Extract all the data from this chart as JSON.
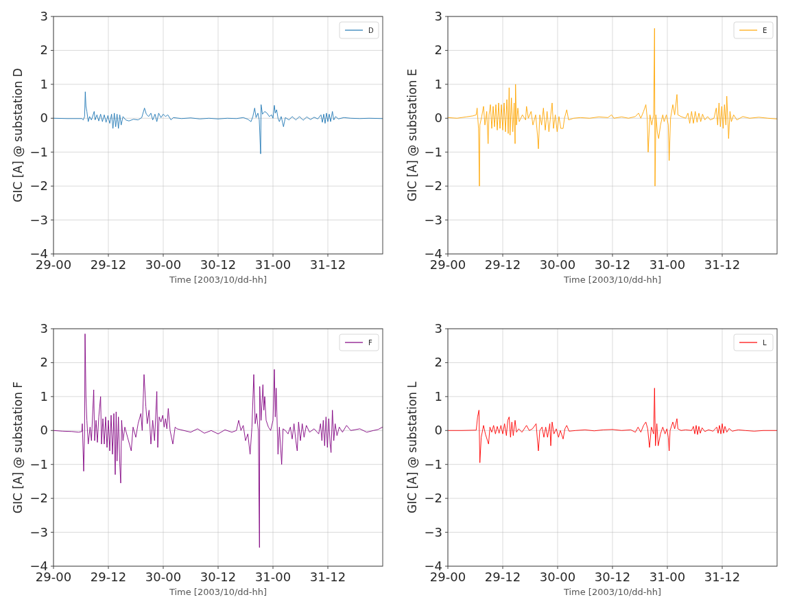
{
  "chart_data": [
    {
      "type": "line",
      "xlabel": "Time [2003/10/dd-hh]",
      "ylabel": "GIC [A] @ substation D",
      "grid": true,
      "legend": "top right",
      "xlim": [
        "2003-10-29T00:00",
        "2003-11-01T00:00"
      ],
      "xticks": [
        {
          "value": "2003-10-29T00:00",
          "label": "29-00"
        },
        {
          "value": "2003-10-29T12:00",
          "label": "29-12"
        },
        {
          "value": "2003-10-30T00:00",
          "label": "30-00"
        },
        {
          "value": "2003-10-30T12:00",
          "label": "30-12"
        },
        {
          "value": "2003-10-31T00:00",
          "label": "31-00"
        },
        {
          "value": "2003-10-31T12:00",
          "label": "31-12"
        }
      ],
      "ylim": [
        -4,
        3
      ],
      "yticks": [
        {
          "value": -4,
          "label": "−4"
        },
        {
          "value": -3,
          "label": "−3"
        },
        {
          "value": -2,
          "label": "−2"
        },
        {
          "value": -1,
          "label": "−1"
        },
        0,
        1,
        2,
        3
      ],
      "x": [
        "2003-10-29T00:00",
        "2003-10-29T03:00",
        "2003-10-29T06:12",
        "2003-10-29T06:30",
        "2003-10-29T06:48",
        "2003-10-29T06:57",
        "2003-10-29T07:06",
        "2003-10-29T07:18",
        "2003-10-29T07:36",
        "2003-10-29T07:54",
        "2003-10-29T08:18",
        "2003-10-29T08:54",
        "2003-10-29T09:06",
        "2003-10-29T09:30",
        "2003-10-29T09:54",
        "2003-10-29T10:18",
        "2003-10-29T10:42",
        "2003-10-29T11:06",
        "2003-10-29T11:30",
        "2003-10-29T11:54",
        "2003-10-29T12:18",
        "2003-10-29T12:42",
        "2003-10-29T13:00",
        "2003-10-29T13:18",
        "2003-10-29T13:36",
        "2003-10-29T13:54",
        "2003-10-29T14:12",
        "2003-10-29T14:30",
        "2003-10-29T14:48",
        "2003-10-29T15:12",
        "2003-10-29T15:48",
        "2003-10-29T16:30",
        "2003-10-29T17:30",
        "2003-10-29T18:30",
        "2003-10-29T19:18",
        "2003-10-29T19:54",
        "2003-10-29T20:18",
        "2003-10-29T20:48",
        "2003-10-29T21:18",
        "2003-10-29T21:42",
        "2003-10-29T22:12",
        "2003-10-29T22:36",
        "2003-10-29T23:00",
        "2003-10-29T23:30",
        "2003-10-30T00:00",
        "2003-10-30T00:30",
        "2003-10-30T01:00",
        "2003-10-30T01:42",
        "2003-10-30T02:12",
        "2003-10-30T04:00",
        "2003-10-30T06:00",
        "2003-10-30T08:00",
        "2003-10-30T10:00",
        "2003-10-30T12:00",
        "2003-10-30T14:00",
        "2003-10-30T16:00",
        "2003-10-30T17:30",
        "2003-10-30T18:30",
        "2003-10-30T19:12",
        "2003-10-30T19:36",
        "2003-10-30T20:00",
        "2003-10-30T20:18",
        "2003-10-30T20:42",
        "2003-10-30T21:00",
        "2003-10-30T21:18",
        "2003-10-30T21:24",
        "2003-10-30T21:42",
        "2003-10-30T22:12",
        "2003-10-30T22:42",
        "2003-10-30T23:12",
        "2003-10-30T23:42",
        "2003-10-31T00:00",
        "2003-10-31T00:18",
        "2003-10-31T00:30",
        "2003-10-31T00:48",
        "2003-10-31T01:06",
        "2003-10-31T01:24",
        "2003-10-31T01:48",
        "2003-10-31T02:18",
        "2003-10-31T02:42",
        "2003-10-31T03:30",
        "2003-10-31T04:12",
        "2003-10-31T05:00",
        "2003-10-31T05:48",
        "2003-10-31T06:36",
        "2003-10-31T07:24",
        "2003-10-31T08:12",
        "2003-10-31T09:00",
        "2003-10-31T09:48",
        "2003-10-31T10:30",
        "2003-10-31T10:48",
        "2003-10-31T11:06",
        "2003-10-31T11:24",
        "2003-10-31T11:42",
        "2003-10-31T12:00",
        "2003-10-31T12:18",
        "2003-10-31T12:36",
        "2003-10-31T13:00",
        "2003-10-31T13:18",
        "2003-10-31T13:42",
        "2003-10-31T14:18",
        "2003-10-31T15:30",
        "2003-10-31T17:00",
        "2003-10-31T19:00",
        "2003-10-31T21:00",
        "2003-10-31T23:57"
      ],
      "series": [
        {
          "name": "D",
          "color": "#1f77b4",
          "values": [
            0,
            -0.01,
            -0.01,
            -0.05,
            0.05,
            0.78,
            0.35,
            0.2,
            -0.1,
            0.05,
            -0.05,
            0.2,
            -0.05,
            0.1,
            -0.08,
            0.12,
            -0.1,
            0.1,
            -0.12,
            0.08,
            -0.15,
            0.12,
            -0.3,
            0.15,
            -0.25,
            0.12,
            -0.3,
            0.1,
            -0.2,
            0.05,
            -0.05,
            -0.08,
            -0.03,
            -0.05,
            0.02,
            0.3,
            0.12,
            0.05,
            0.15,
            -0.05,
            0.12,
            -0.1,
            0.15,
            0.02,
            0.12,
            0.05,
            0.1,
            -0.05,
            0.02,
            -0.01,
            0.01,
            -0.02,
            0,
            -0.02,
            0,
            -0.01,
            0.02,
            -0.03,
            -0.1,
            0.05,
            0.3,
            0.02,
            0.15,
            -0.05,
            -1.05,
            0.4,
            0.12,
            0.2,
            0.15,
            0.05,
            0.1,
            0,
            0.38,
            0.15,
            0.25,
            0,
            -0.1,
            0.05,
            -0.25,
            0.02,
            -0.05,
            0.05,
            -0.05,
            0.05,
            -0.06,
            0.04,
            -0.04,
            0.03,
            -0.02,
            0.1,
            -0.12,
            0.12,
            -0.15,
            0.15,
            -0.1,
            0.12,
            -0.1,
            0.2,
            -0.05,
            0.05,
            -0.02,
            0.02,
            0,
            -0.01,
            0,
            -0.01
          ]
        }
      ]
    },
    {
      "type": "line",
      "xlabel": "Time [2003/10/dd-hh]",
      "ylabel": "GIC [A] @ substation E",
      "grid": true,
      "legend": "top right",
      "xlim": [
        "2003-10-29T00:00",
        "2003-11-01T00:00"
      ],
      "xticks": [
        {
          "value": "2003-10-29T00:00",
          "label": "29-00"
        },
        {
          "value": "2003-10-29T12:00",
          "label": "29-12"
        },
        {
          "value": "2003-10-30T00:00",
          "label": "30-00"
        },
        {
          "value": "2003-10-30T12:00",
          "label": "30-12"
        },
        {
          "value": "2003-10-31T00:00",
          "label": "31-00"
        },
        {
          "value": "2003-10-31T12:00",
          "label": "31-12"
        }
      ],
      "ylim": [
        -4,
        3
      ],
      "yticks": [
        {
          "value": -4,
          "label": "−4"
        },
        {
          "value": -3,
          "label": "−3"
        },
        {
          "value": -2,
          "label": "−2"
        },
        {
          "value": -1,
          "label": "−1"
        },
        0,
        1,
        2,
        3
      ],
      "x": [
        "2003-10-29T00:00",
        "2003-10-29T02:00",
        "2003-10-29T04:00",
        "2003-10-29T05:30",
        "2003-10-29T06:12",
        "2003-10-29T06:24",
        "2003-10-29T06:42",
        "2003-10-29T06:54",
        "2003-10-29T07:00",
        "2003-10-29T07:24",
        "2003-10-29T07:48",
        "2003-10-29T08:06",
        "2003-10-29T08:30",
        "2003-10-29T08:48",
        "2003-10-29T09:00",
        "2003-10-29T09:18",
        "2003-10-29T09:36",
        "2003-10-29T09:54",
        "2003-10-29T10:12",
        "2003-10-29T10:30",
        "2003-10-29T10:48",
        "2003-10-29T11:06",
        "2003-10-29T11:24",
        "2003-10-29T11:42",
        "2003-10-29T12:00",
        "2003-10-29T12:18",
        "2003-10-29T12:36",
        "2003-10-29T12:54",
        "2003-10-29T13:12",
        "2003-10-29T13:24",
        "2003-10-29T13:36",
        "2003-10-29T13:54",
        "2003-10-29T14:12",
        "2003-10-29T14:30",
        "2003-10-29T14:42",
        "2003-10-29T14:48",
        "2003-10-29T15:00",
        "2003-10-29T15:18",
        "2003-10-29T15:36",
        "2003-10-29T16:18",
        "2003-10-29T17:00",
        "2003-10-29T17:12",
        "2003-10-29T17:36",
        "2003-10-29T18:12",
        "2003-10-29T18:36",
        "2003-10-29T19:12",
        "2003-10-29T19:36",
        "2003-10-29T19:48",
        "2003-10-29T20:06",
        "2003-10-29T20:30",
        "2003-10-29T20:54",
        "2003-10-29T21:18",
        "2003-10-29T21:42",
        "2003-10-29T22:06",
        "2003-10-29T22:30",
        "2003-10-29T22:48",
        "2003-10-29T23:06",
        "2003-10-29T23:30",
        "2003-10-29T23:54",
        "2003-10-30T00:18",
        "2003-10-30T00:42",
        "2003-10-30T01:12",
        "2003-10-30T01:30",
        "2003-10-30T02:00",
        "2003-10-30T02:24",
        "2003-10-30T03:30",
        "2003-10-30T05:00",
        "2003-10-30T07:00",
        "2003-10-30T09:00",
        "2003-10-30T11:00",
        "2003-10-30T11:48",
        "2003-10-30T12:18",
        "2003-10-30T14:00",
        "2003-10-30T15:30",
        "2003-10-30T17:00",
        "2003-10-30T17:42",
        "2003-10-30T18:12",
        "2003-10-30T18:48",
        "2003-10-30T19:18",
        "2003-10-30T19:36",
        "2003-10-30T19:48",
        "2003-10-30T20:12",
        "2003-10-30T20:36",
        "2003-10-30T21:00",
        "2003-10-30T21:12",
        "2003-10-30T21:18",
        "2003-10-30T21:30",
        "2003-10-30T21:48",
        "2003-10-30T22:06",
        "2003-10-30T22:30",
        "2003-10-30T23:00",
        "2003-10-30T23:18",
        "2003-10-30T23:48",
        "2003-10-31T00:12",
        "2003-10-31T00:24",
        "2003-10-31T00:42",
        "2003-10-31T01:12",
        "2003-10-31T01:36",
        "2003-10-31T02:06",
        "2003-10-31T02:18",
        "2003-10-31T03:00",
        "2003-10-31T04:00",
        "2003-10-31T04:30",
        "2003-10-31T04:54",
        "2003-10-31T05:18",
        "2003-10-31T05:42",
        "2003-10-31T06:06",
        "2003-10-31T06:30",
        "2003-10-31T06:54",
        "2003-10-31T07:18",
        "2003-10-31T07:42",
        "2003-10-31T08:12",
        "2003-10-31T08:48",
        "2003-10-31T09:24",
        "2003-10-31T10:12",
        "2003-10-31T10:42",
        "2003-10-31T11:00",
        "2003-10-31T11:18",
        "2003-10-31T11:36",
        "2003-10-31T11:54",
        "2003-10-31T12:12",
        "2003-10-31T12:30",
        "2003-10-31T12:48",
        "2003-10-31T13:00",
        "2003-10-31T13:24",
        "2003-10-31T13:42",
        "2003-10-31T14:00",
        "2003-10-31T14:30",
        "2003-10-31T15:12",
        "2003-10-31T16:30",
        "2003-10-31T18:00",
        "2003-10-31T20:00",
        "2003-10-31T22:00",
        "2003-10-31T23:57"
      ],
      "series": [
        {
          "name": "E",
          "color": "#ffa500",
          "values": [
            0.02,
            0,
            0.04,
            0.07,
            0.1,
            0.3,
            -0.3,
            -2.0,
            -0.2,
            0.05,
            0.35,
            -0.2,
            0.2,
            -0.75,
            0.1,
            0.4,
            -0.3,
            0.35,
            -0.25,
            0.4,
            -0.35,
            0.45,
            -0.3,
            0.4,
            -0.35,
            0.45,
            -0.4,
            0.55,
            -0.45,
            0.9,
            -0.5,
            0.6,
            -0.4,
            0.45,
            -0.75,
            1.0,
            -0.2,
            0.3,
            -0.1,
            0.1,
            -0.05,
            0.35,
            0,
            0.2,
            -0.2,
            0.1,
            -0.5,
            -0.9,
            0.1,
            -0.2,
            0.3,
            -0.35,
            0.2,
            -0.4,
            0.1,
            0.45,
            -0.3,
            0.1,
            -0.4,
            0.05,
            -0.3,
            -0.3,
            0,
            0.25,
            -0.05,
            0,
            0.02,
            0,
            0.04,
            0.02,
            0.1,
            0,
            0.04,
            0,
            0.05,
            0.15,
            0,
            0.2,
            0.4,
            0,
            -1.0,
            0.1,
            -0.2,
            0.1,
            2.65,
            -2.0,
            0.1,
            -0.4,
            -0.6,
            -0.2,
            0.1,
            -0.1,
            0.1,
            -0.2,
            -1.25,
            0,
            0.4,
            0.1,
            0.7,
            0.1,
            0.05,
            0,
            0.15,
            -0.15,
            0.2,
            -0.15,
            0.2,
            -0.12,
            0.15,
            -0.1,
            0.12,
            -0.05,
            0.05,
            -0.05,
            0,
            0.3,
            -0.2,
            0.45,
            -0.25,
            0.35,
            -0.3,
            0.4,
            -0.2,
            0.65,
            -0.6,
            0.2,
            -0.1,
            0.1,
            -0.05,
            0.05,
            0,
            0.03,
            0,
            -0.02
          ]
        }
      ]
    },
    {
      "type": "line",
      "xlabel": "Time [2003/10/dd-hh]",
      "ylabel": "GIC [A] @ substation F",
      "grid": true,
      "legend": "top right",
      "xlim": [
        "2003-10-29T00:00",
        "2003-11-01T00:00"
      ],
      "xticks": [
        {
          "value": "2003-10-29T00:00",
          "label": "29-00"
        },
        {
          "value": "2003-10-29T12:00",
          "label": "29-12"
        },
        {
          "value": "2003-10-30T00:00",
          "label": "30-00"
        },
        {
          "value": "2003-10-30T12:00",
          "label": "30-12"
        },
        {
          "value": "2003-10-31T00:00",
          "label": "31-00"
        },
        {
          "value": "2003-10-31T12:00",
          "label": "31-12"
        }
      ],
      "ylim": [
        -4,
        3
      ],
      "yticks": [
        {
          "value": -4,
          "label": "−4"
        },
        {
          "value": -3,
          "label": "−3"
        },
        {
          "value": -2,
          "label": "−2"
        },
        {
          "value": -1,
          "label": "−1"
        },
        0,
        1,
        2,
        3
      ],
      "x": [
        "2003-10-29T00:00",
        "2003-10-29T02:00",
        "2003-10-29T04:00",
        "2003-10-29T05:30",
        "2003-10-29T06:12",
        "2003-10-29T06:18",
        "2003-10-29T06:36",
        "2003-10-29T06:48",
        "2003-10-29T06:54",
        "2003-10-29T07:06",
        "2003-10-29T07:18",
        "2003-10-29T07:36",
        "2003-10-29T08:00",
        "2003-10-29T08:18",
        "2003-10-29T08:48",
        "2003-10-29T09:00",
        "2003-10-29T09:18",
        "2003-10-29T09:36",
        "2003-10-29T09:54",
        "2003-10-29T10:18",
        "2003-10-29T10:30",
        "2003-10-29T10:48",
        "2003-10-29T11:06",
        "2003-10-29T11:24",
        "2003-10-29T11:42",
        "2003-10-29T12:00",
        "2003-10-29T12:18",
        "2003-10-29T12:36",
        "2003-10-29T12:54",
        "2003-10-29T13:12",
        "2003-10-29T13:30",
        "2003-10-29T13:42",
        "2003-10-29T13:54",
        "2003-10-29T14:12",
        "2003-10-29T14:30",
        "2003-10-29T14:42",
        "2003-10-29T14:54",
        "2003-10-29T15:12",
        "2003-10-29T15:36",
        "2003-10-29T16:12",
        "2003-10-29T17:00",
        "2003-10-29T17:24",
        "2003-10-29T18:00",
        "2003-10-29T18:30",
        "2003-10-29T19:06",
        "2003-10-29T19:24",
        "2003-10-29T19:48",
        "2003-10-29T20:12",
        "2003-10-29T20:30",
        "2003-10-29T20:54",
        "2003-10-29T21:18",
        "2003-10-29T21:42",
        "2003-10-29T22:06",
        "2003-10-29T22:36",
        "2003-10-29T22:48",
        "2003-10-29T23:06",
        "2003-10-29T23:30",
        "2003-10-29T23:54",
        "2003-10-30T00:12",
        "2003-10-30T00:30",
        "2003-10-30T00:48",
        "2003-10-30T01:06",
        "2003-10-30T01:30",
        "2003-10-30T02:06",
        "2003-10-30T02:36",
        "2003-10-30T03:00",
        "2003-10-30T04:30",
        "2003-10-30T06:00",
        "2003-10-30T07:30",
        "2003-10-30T09:00",
        "2003-10-30T10:30",
        "2003-10-30T12:00",
        "2003-10-30T13:30",
        "2003-10-30T15:00",
        "2003-10-30T16:00",
        "2003-10-30T16:30",
        "2003-10-30T17:00",
        "2003-10-30T17:30",
        "2003-10-30T18:00",
        "2003-10-30T18:30",
        "2003-10-30T19:00",
        "2003-10-30T19:24",
        "2003-10-30T19:48",
        "2003-10-30T20:06",
        "2003-10-30T20:24",
        "2003-10-30T20:48",
        "2003-10-30T21:03",
        "2003-10-30T21:06",
        "2003-10-30T21:24",
        "2003-10-30T21:48",
        "2003-10-30T22:00",
        "2003-10-30T22:12",
        "2003-10-30T22:30",
        "2003-10-30T23:00",
        "2003-10-30T23:30",
        "2003-10-31T00:00",
        "2003-10-31T00:18",
        "2003-10-31T00:30",
        "2003-10-31T00:42",
        "2003-10-31T01:06",
        "2003-10-31T01:24",
        "2003-10-31T01:54",
        "2003-10-31T02:12",
        "2003-10-31T02:42",
        "2003-10-31T03:18",
        "2003-10-31T03:48",
        "2003-10-31T04:12",
        "2003-10-31T04:36",
        "2003-10-31T05:00",
        "2003-10-31T05:18",
        "2003-10-31T05:36",
        "2003-10-31T06:00",
        "2003-10-31T06:24",
        "2003-10-31T06:48",
        "2003-10-31T07:18",
        "2003-10-31T08:00",
        "2003-10-31T09:00",
        "2003-10-31T10:00",
        "2003-10-31T10:24",
        "2003-10-31T10:42",
        "2003-10-31T11:00",
        "2003-10-31T11:18",
        "2003-10-31T11:36",
        "2003-10-31T11:54",
        "2003-10-31T12:12",
        "2003-10-31T12:30",
        "2003-10-31T12:42",
        "2003-10-31T13:00",
        "2003-10-31T13:18",
        "2003-10-31T13:36",
        "2003-10-31T14:00",
        "2003-10-31T14:30",
        "2003-10-31T15:12",
        "2003-10-31T16:06",
        "2003-10-31T17:00",
        "2003-10-31T19:00",
        "2003-10-31T20:30",
        "2003-10-31T22:00",
        "2003-10-31T23:00",
        "2003-10-31T23:57"
      ],
      "series": [
        {
          "name": "F",
          "color": "#800080",
          "values": [
            0,
            -0.02,
            -0.03,
            -0.05,
            -0.03,
            0.2,
            -1.2,
            0,
            2.85,
            1.0,
            0.3,
            -0.4,
            0.1,
            -0.3,
            1.2,
            -0.3,
            0.3,
            -0.35,
            0.4,
            1.0,
            -0.4,
            0.35,
            -0.4,
            0.4,
            -0.5,
            0.3,
            -0.6,
            0.45,
            -0.7,
            0.5,
            -1.3,
            0.55,
            -0.9,
            0.4,
            -1.0,
            -1.55,
            0.3,
            -0.3,
            0.1,
            -0.2,
            -0.6,
            0.1,
            -0.2,
            0.2,
            0.5,
            0,
            1.65,
            0.7,
            0.2,
            0.6,
            -0.4,
            0.3,
            -0.3,
            1.15,
            -0.5,
            0.4,
            0.25,
            0.45,
            0.1,
            0.35,
            0.05,
            0.65,
            0,
            -0.4,
            0.1,
            0.05,
            0,
            -0.05,
            0.05,
            -0.08,
            0,
            -0.1,
            0.02,
            -0.05,
            0,
            0.3,
            0,
            0.15,
            -0.3,
            -0.1,
            -0.7,
            0.1,
            1.65,
            0.2,
            0.5,
            0,
            -3.45,
            1.3,
            0.3,
            1.35,
            0.6,
            1.0,
            0.3,
            0.1,
            0,
            0.3,
            1.8,
            0.4,
            1.25,
            -0.7,
            0.1,
            -1.0,
            0.05,
            0,
            -0.1,
            0.1,
            -0.25,
            0.2,
            -0.3,
            -0.6,
            0.25,
            -0.3,
            0.2,
            -0.2,
            0.15,
            -0.05,
            0.05,
            -0.1,
            0.2,
            -0.3,
            0.3,
            -0.45,
            0.4,
            -0.5,
            0.35,
            -0.4,
            -0.65,
            0.6,
            -0.3,
            0.2,
            -0.15,
            0.1,
            -0.05,
            0.15,
            0,
            0.05,
            -0.05,
            0,
            0.03,
            0.1
          ]
        }
      ]
    },
    {
      "type": "line",
      "xlabel": "Time [2003/10/dd-hh]",
      "ylabel": "GIC [A] @ substation L",
      "grid": true,
      "legend": "top right",
      "xlim": [
        "2003-10-29T00:00",
        "2003-11-01T00:00"
      ],
      "xticks": [
        {
          "value": "2003-10-29T00:00",
          "label": "29-00"
        },
        {
          "value": "2003-10-29T12:00",
          "label": "29-12"
        },
        {
          "value": "2003-10-30T00:00",
          "label": "30-00"
        },
        {
          "value": "2003-10-30T12:00",
          "label": "30-12"
        },
        {
          "value": "2003-10-31T00:00",
          "label": "31-00"
        },
        {
          "value": "2003-10-31T12:00",
          "label": "31-12"
        }
      ],
      "ylim": [
        -4,
        3
      ],
      "yticks": [
        {
          "value": -4,
          "label": "−4"
        },
        {
          "value": -3,
          "label": "−3"
        },
        {
          "value": -2,
          "label": "−2"
        },
        {
          "value": -1,
          "label": "−1"
        },
        0,
        1,
        2,
        3
      ],
      "x": [
        "2003-10-29T00:00",
        "2003-10-29T03:00",
        "2003-10-29T06:12",
        "2003-10-29T06:30",
        "2003-10-29T06:48",
        "2003-10-29T07:00",
        "2003-10-29T07:18",
        "2003-10-29T07:48",
        "2003-10-29T08:12",
        "2003-10-29T08:54",
        "2003-10-29T09:12",
        "2003-10-29T09:36",
        "2003-10-29T10:00",
        "2003-10-29T10:24",
        "2003-10-29T10:48",
        "2003-10-29T11:12",
        "2003-10-29T11:36",
        "2003-10-29T12:00",
        "2003-10-29T12:24",
        "2003-10-29T12:48",
        "2003-10-29T13:06",
        "2003-10-29T13:24",
        "2003-10-29T13:42",
        "2003-10-29T14:00",
        "2003-10-29T14:18",
        "2003-10-29T14:42",
        "2003-10-29T15:00",
        "2003-10-29T15:30",
        "2003-10-29T16:12",
        "2003-10-29T17:12",
        "2003-10-29T17:48",
        "2003-10-29T18:30",
        "2003-10-29T19:18",
        "2003-10-29T19:36",
        "2003-10-29T19:48",
        "2003-10-29T20:06",
        "2003-10-29T20:36",
        "2003-10-29T21:00",
        "2003-10-29T21:24",
        "2003-10-29T21:48",
        "2003-10-29T22:18",
        "2003-10-29T22:30",
        "2003-10-29T22:48",
        "2003-10-29T23:12",
        "2003-10-29T23:42",
        "2003-10-30T00:12",
        "2003-10-30T00:36",
        "2003-10-30T01:12",
        "2003-10-30T01:36",
        "2003-10-30T02:00",
        "2003-10-30T02:30",
        "2003-10-30T04:00",
        "2003-10-30T06:00",
        "2003-10-30T08:00",
        "2003-10-30T10:00",
        "2003-10-30T12:00",
        "2003-10-30T14:00",
        "2003-10-30T16:00",
        "2003-10-30T17:00",
        "2003-10-30T17:36",
        "2003-10-30T18:12",
        "2003-10-30T18:48",
        "2003-10-30T19:18",
        "2003-10-30T19:42",
        "2003-10-30T20:06",
        "2003-10-30T20:30",
        "2003-10-30T21:00",
        "2003-10-30T21:12",
        "2003-10-30T21:24",
        "2003-10-30T21:42",
        "2003-10-30T22:00",
        "2003-10-30T22:30",
        "2003-10-30T23:00",
        "2003-10-30T23:30",
        "2003-10-30T23:54",
        "2003-10-31T00:12",
        "2003-10-31T00:24",
        "2003-10-31T00:36",
        "2003-10-31T01:12",
        "2003-10-31T01:36",
        "2003-10-31T02:06",
        "2003-10-31T02:18",
        "2003-10-31T03:00",
        "2003-10-31T04:00",
        "2003-10-31T05:18",
        "2003-10-31T05:42",
        "2003-10-31T06:00",
        "2003-10-31T06:18",
        "2003-10-31T06:36",
        "2003-10-31T06:54",
        "2003-10-31T07:12",
        "2003-10-31T07:36",
        "2003-10-31T08:12",
        "2003-10-31T09:00",
        "2003-10-31T10:00",
        "2003-10-31T10:48",
        "2003-10-31T11:06",
        "2003-10-31T11:24",
        "2003-10-31T11:42",
        "2003-10-31T12:00",
        "2003-10-31T12:18",
        "2003-10-31T12:36",
        "2003-10-31T13:00",
        "2003-10-31T13:30",
        "2003-10-31T14:12",
        "2003-10-31T15:30",
        "2003-10-31T17:00",
        "2003-10-31T19:00",
        "2003-10-31T21:00",
        "2003-10-31T23:57"
      ],
      "series": [
        {
          "name": "L",
          "color": "#ff0000",
          "values": [
            0,
            0,
            0.01,
            0.4,
            0.6,
            -0.95,
            -0.2,
            0.15,
            -0.1,
            -0.4,
            0.1,
            -0.05,
            0.15,
            -0.1,
            0.12,
            -0.08,
            0.15,
            -0.1,
            0.2,
            -0.15,
            0.3,
            0.4,
            -0.2,
            0.25,
            -0.15,
            0.3,
            -0.05,
            0.05,
            -0.05,
            0.15,
            0,
            0.05,
            0.2,
            -0.3,
            -0.6,
            0,
            0.1,
            -0.2,
            0.1,
            -0.2,
            0.2,
            -0.45,
            0.25,
            -0.1,
            0.05,
            -0.2,
            0,
            -0.25,
            0.05,
            0.15,
            -0.02,
            0,
            0.02,
            -0.01,
            0.02,
            0.03,
            0,
            0.02,
            -0.05,
            0.1,
            -0.05,
            0.15,
            0.25,
            0.05,
            -0.5,
            0.1,
            -0.1,
            1.25,
            -0.45,
            0.2,
            -0.45,
            -0.1,
            0.1,
            -0.1,
            0.05,
            -0.2,
            -0.6,
            0,
            0.25,
            0.05,
            0.35,
            0.05,
            0,
            0.02,
            0,
            0.12,
            -0.1,
            0.15,
            -0.12,
            0.12,
            -0.08,
            0.08,
            -0.03,
            0.02,
            -0.02,
            0.1,
            -0.08,
            0.15,
            -0.1,
            0.2,
            -0.08,
            0.12,
            -0.05,
            0.06,
            -0.02,
            0.02,
            0,
            -0.02,
            0,
            0
          ]
        }
      ]
    }
  ]
}
